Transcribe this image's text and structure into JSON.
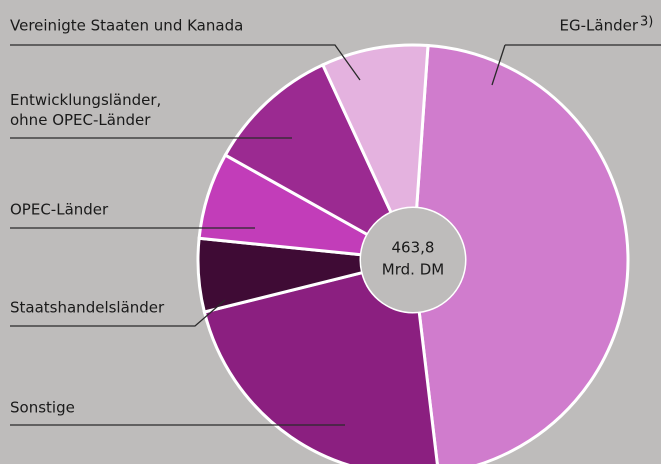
{
  "chart_data": {
    "type": "donut",
    "center_label": [
      "463,8",
      "Mrd. DM"
    ],
    "categories": [
      "EG-Länder",
      "Sonstige",
      "Staatshandelsländer",
      "OPEC-Länder",
      "Entwicklungsländer,\nohne OPEC-Länder",
      "Vereinigte Staaten und Kanada"
    ],
    "footnote_marker": "3)",
    "values": [
      47,
      23,
      5.5,
      6.5,
      10,
      8
    ],
    "colors": [
      "#d07ccd",
      "#8b1f80",
      "#3f0b35",
      "#c23db9",
      "#9b2a91",
      "#e4b2df"
    ]
  }
}
